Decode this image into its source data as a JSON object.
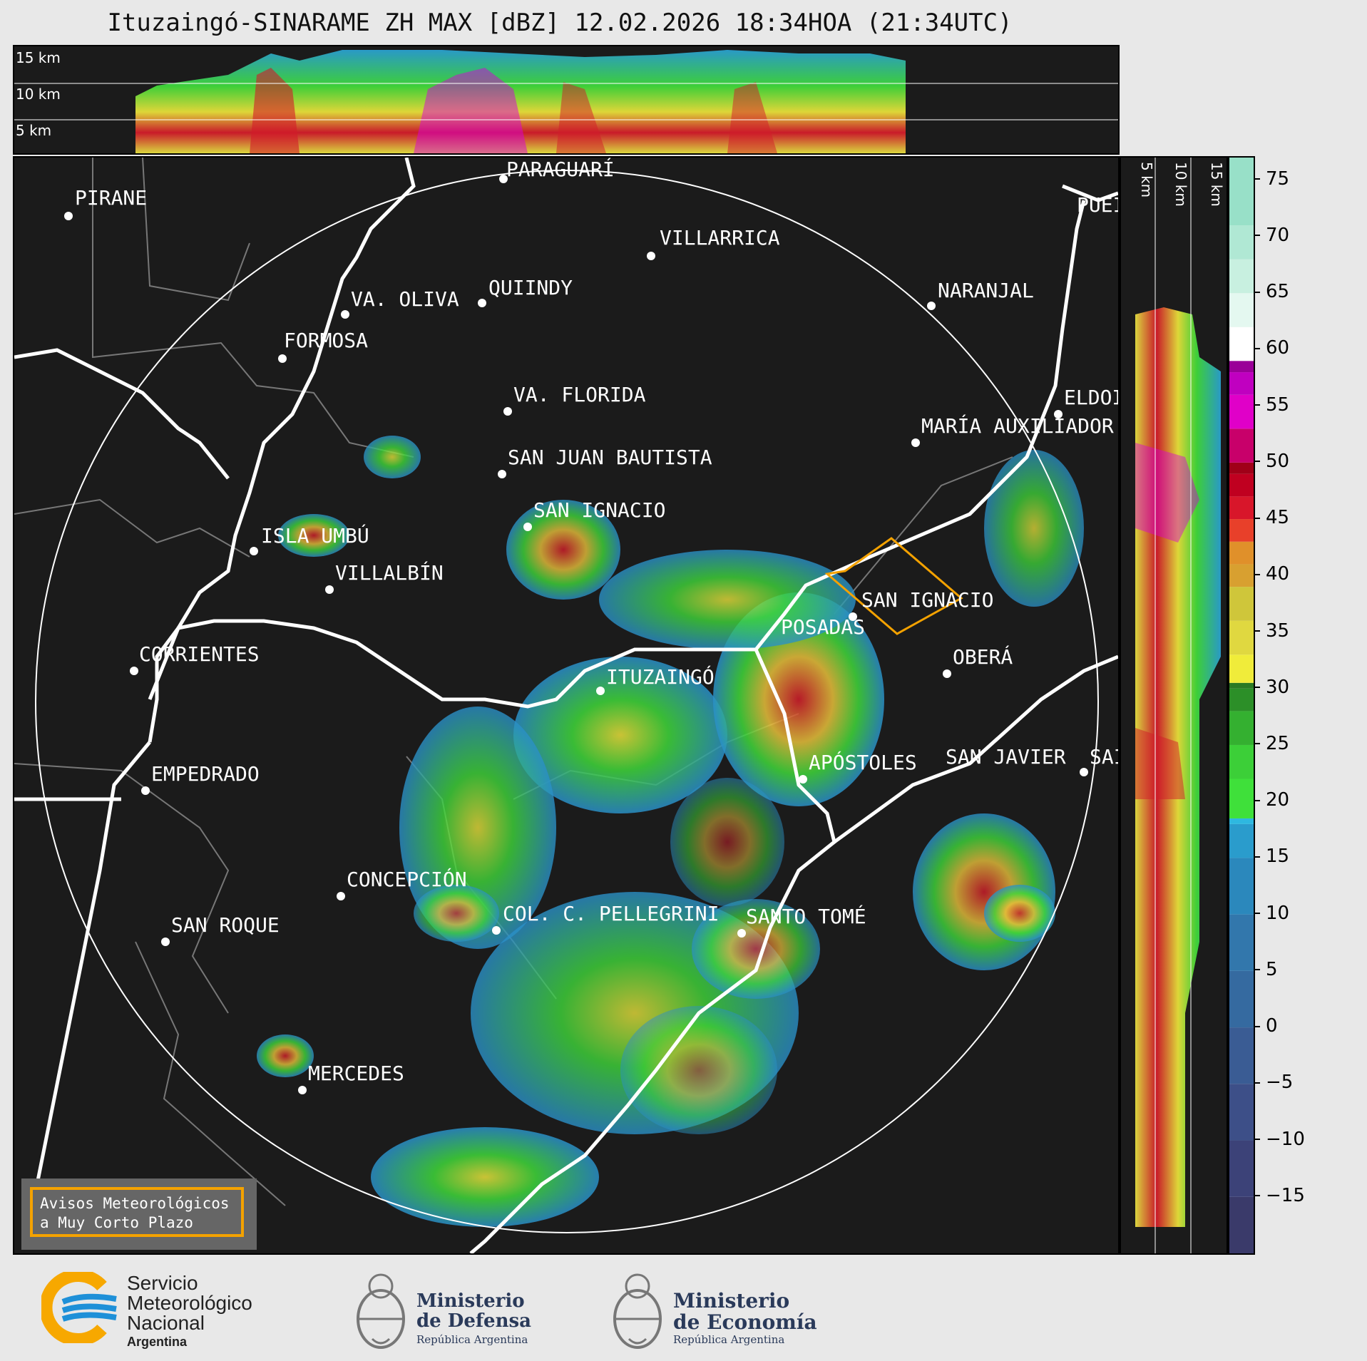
{
  "title": "Ituzaingó-SINARAME ZH MAX [dBZ] 12.02.2026 18:34HOA (21:34UTC)",
  "height_labels_top": [
    "15 km",
    "10 km",
    "5 km"
  ],
  "height_labels_side": [
    "5 km",
    "10 km",
    "15 km"
  ],
  "colorbar": {
    "ticks": [
      "75",
      "70",
      "65",
      "60",
      "55",
      "50",
      "45",
      "40",
      "35",
      "30",
      "25",
      "20",
      "15",
      "10",
      "5",
      "0",
      "−5",
      "−10",
      "−15"
    ],
    "range": [
      -20,
      77
    ]
  },
  "cities": [
    {
      "name": "PARAGUARÍ"
    },
    {
      "name": "PIRANE"
    },
    {
      "name": "VILLARRICA"
    },
    {
      "name": "QUIINDY"
    },
    {
      "name": "VA. OLIVA"
    },
    {
      "name": "NARANJAL"
    },
    {
      "name": "FORMOSA"
    },
    {
      "name": "PUEI"
    },
    {
      "name": "VA. FLORIDA"
    },
    {
      "name": "ELDOI"
    },
    {
      "name": "MARÍA AUXILIADOR"
    },
    {
      "name": "SAN JUAN BAUTISTA"
    },
    {
      "name": "SAN IGNACIO"
    },
    {
      "name": "ISLA UMBÚ"
    },
    {
      "name": "VILLALBÍN"
    },
    {
      "name": "SAN IGNACIO"
    },
    {
      "name": "POSADAS"
    },
    {
      "name": "CORRIENTES"
    },
    {
      "name": "ITUZAINGÓ"
    },
    {
      "name": "OBERÁ"
    },
    {
      "name": "EMPEDRADO"
    },
    {
      "name": "APÓSTOLES"
    },
    {
      "name": "SAN JAVIER"
    },
    {
      "name": "SAI"
    },
    {
      "name": "CONCEPCIÓN"
    },
    {
      "name": "SAN ROQUE"
    },
    {
      "name": "COL. C. PELLEGRINI"
    },
    {
      "name": "SANTO TOMÉ"
    },
    {
      "name": "MERCEDES"
    }
  ],
  "legend": {
    "line1": "Avisos Meteorológicos",
    "line2": "a Muy Corto Plazo"
  },
  "footer": {
    "smn": {
      "line1": "Servicio",
      "line2": "Meteorológico",
      "line3": "Nacional",
      "line4": "Argentina"
    },
    "defensa": {
      "line1": "Ministerio",
      "line2": "de Defensa",
      "line3": "República Argentina"
    },
    "economia": {
      "line1": "Ministerio",
      "line2": "de Economía",
      "line3": "República Argentina"
    }
  },
  "colors": {
    "range_ring": "#ffffff",
    "warning_box": "#f4a200",
    "smn_blue": "#1e90d8",
    "smn_yellow": "#f7a800"
  }
}
